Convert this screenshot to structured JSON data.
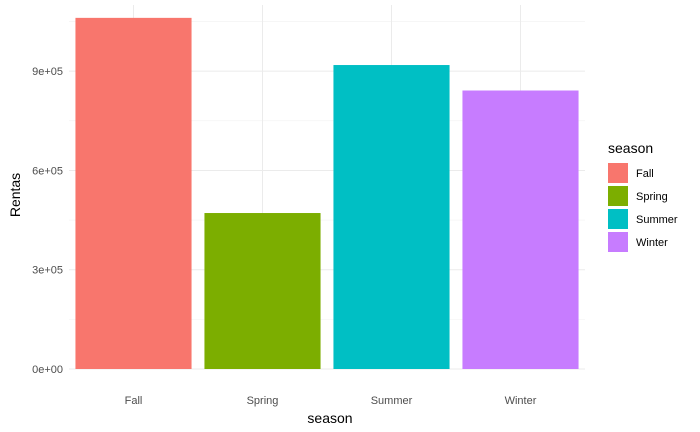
{
  "chart_data": {
    "type": "bar",
    "title": "",
    "xlabel": "season",
    "ylabel": "Rentas",
    "categories": [
      "Fall",
      "Spring",
      "Summer",
      "Winter"
    ],
    "values": [
      1061129,
      471348,
      918589,
      841613
    ],
    "colors": [
      "#F8766D",
      "#7CAE00",
      "#00BFC4",
      "#C77CFF"
    ],
    "ylim": [
      0,
      1100000
    ],
    "yticks": [
      0,
      300000,
      600000,
      900000
    ],
    "ytick_labels": [
      "0e+00",
      "3e+05",
      "6e+05",
      "9e+05"
    ],
    "grid": true,
    "legend": {
      "title": "season",
      "position": "right",
      "entries": [
        "Fall",
        "Spring",
        "Summer",
        "Winter"
      ]
    }
  }
}
